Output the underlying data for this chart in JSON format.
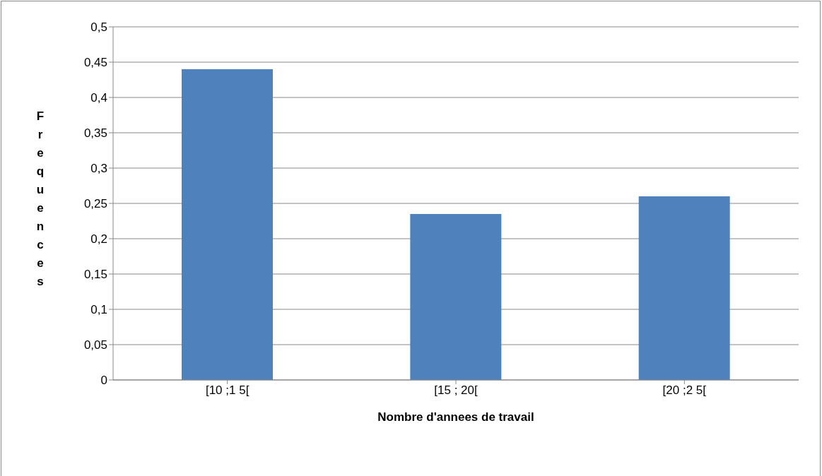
{
  "chart_data": {
    "type": "bar",
    "xlabel": "Nombre d'annees de travail",
    "ylabel": "Frequences",
    "categories": [
      "[10 ;1 5[",
      "[15 ; 20[",
      "[20 ;2 5["
    ],
    "values": [
      0.44,
      0.235,
      0.26
    ],
    "color": "#4f81bd",
    "ylim": [
      0,
      0.5
    ],
    "yticks": [
      0,
      {
        "value": 0.05,
        "label": "0,05"
      },
      {
        "value": 0.1,
        "label": "0,1"
      },
      {
        "value": 0.15,
        "label": "0,15"
      },
      {
        "value": 0.2,
        "label": "0,2"
      },
      {
        "value": 0.25,
        "label": "0,25"
      },
      {
        "value": 0.3,
        "label": "0,3"
      },
      {
        "value": 0.35,
        "label": "0,35"
      },
      {
        "value": 0.4,
        "label": "0,4"
      },
      {
        "value": 0.45,
        "label": "0,45"
      },
      {
        "value": 0.5,
        "label": "0,5"
      }
    ],
    "grid": "y"
  }
}
